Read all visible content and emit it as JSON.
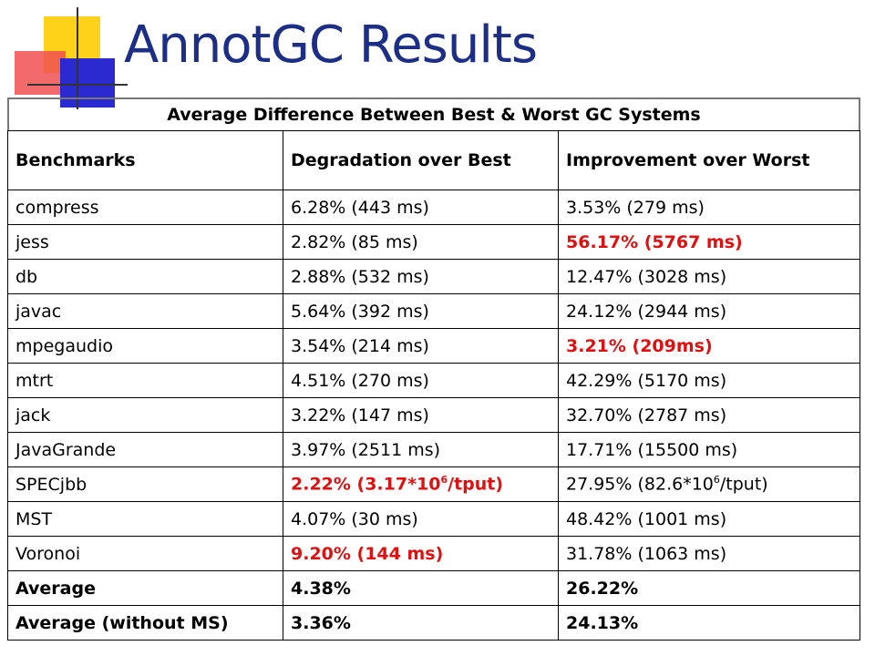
{
  "slide": {
    "title": "AnnotGC Results"
  },
  "table": {
    "caption": "Average Difference Between Best & Worst GC Systems",
    "headers": [
      "Benchmarks",
      "Degradation over Best",
      "Improvement over Worst"
    ],
    "rows": [
      {
        "benchmark": "compress",
        "degradation": "6.28% (443 ms)",
        "improvement": "3.53% (279 ms)"
      },
      {
        "benchmark": "jess",
        "degradation": "2.82% (85 ms)",
        "improvement": "56.17% (5767 ms)"
      },
      {
        "benchmark": "db",
        "degradation": "2.88% (532 ms)",
        "improvement": "12.47% (3028 ms)"
      },
      {
        "benchmark": "javac",
        "degradation": "5.64% (392 ms)",
        "improvement": "24.12% (2944 ms)"
      },
      {
        "benchmark": "mpegaudio",
        "degradation": "3.54% (214 ms)",
        "improvement": "3.21% (209ms)"
      },
      {
        "benchmark": "mtrt",
        "degradation": "4.51% (270 ms)",
        "improvement": "42.29% (5170 ms)"
      },
      {
        "benchmark": "jack",
        "degradation": "3.22% (147 ms)",
        "improvement": "32.70% (2787 ms)"
      },
      {
        "benchmark": "JavaGrande",
        "degradation": "3.97% (2511 ms)",
        "improvement": "17.71% (15500 ms)"
      },
      {
        "benchmark": "SPECjbb",
        "degradation_pre": "2.22% (3.17*10",
        "degradation_exp": "6",
        "degradation_post": "/tput)",
        "improvement_pre": "27.95% (82.6*10",
        "improvement_exp": "6",
        "improvement_post": "/tput)"
      },
      {
        "benchmark": "MST",
        "degradation": "4.07% (30 ms)",
        "improvement": "48.42% (1001 ms)"
      },
      {
        "benchmark": "Voronoi",
        "degradation": "9.20% (144 ms)",
        "improvement": "31.78% (1063 ms)"
      },
      {
        "benchmark": "Average",
        "degradation": "4.38%",
        "improvement": "26.22%"
      },
      {
        "benchmark": "Average (without MS)",
        "degradation": "3.36%",
        "improvement": "24.13%"
      }
    ]
  },
  "colors": {
    "title": "#1c2e86",
    "highlight": "#e01010"
  }
}
